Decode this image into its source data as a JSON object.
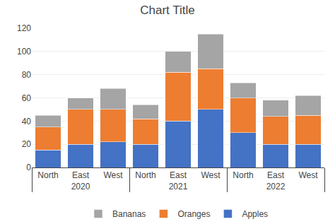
{
  "chart_data": {
    "type": "bar",
    "title": "Chart Title",
    "categories": [
      [
        "2020",
        "North"
      ],
      [
        "2020",
        "East"
      ],
      [
        "2020",
        "West"
      ],
      [
        "2021",
        "North"
      ],
      [
        "2021",
        "East"
      ],
      [
        "2021",
        "West"
      ],
      [
        "2022",
        "North"
      ],
      [
        "2022",
        "East"
      ],
      [
        "2022",
        "West"
      ]
    ],
    "series": [
      {
        "name": "Apples",
        "color": "#4472c4",
        "values": [
          15,
          20,
          22,
          20,
          40,
          50,
          30,
          20,
          20
        ]
      },
      {
        "name": "Oranges",
        "color": "#ed7d31",
        "values": [
          20,
          30,
          28,
          22,
          42,
          35,
          30,
          24,
          25
        ]
      },
      {
        "name": "Bananas",
        "color": "#a5a5a5",
        "values": [
          10,
          10,
          18,
          12,
          18,
          30,
          13,
          14,
          17
        ]
      }
    ],
    "stacked": true,
    "ylim": [
      0,
      120
    ],
    "yticks": [
      0,
      20,
      40,
      60,
      80,
      100,
      120
    ],
    "grid": true,
    "legend": "bottom"
  }
}
